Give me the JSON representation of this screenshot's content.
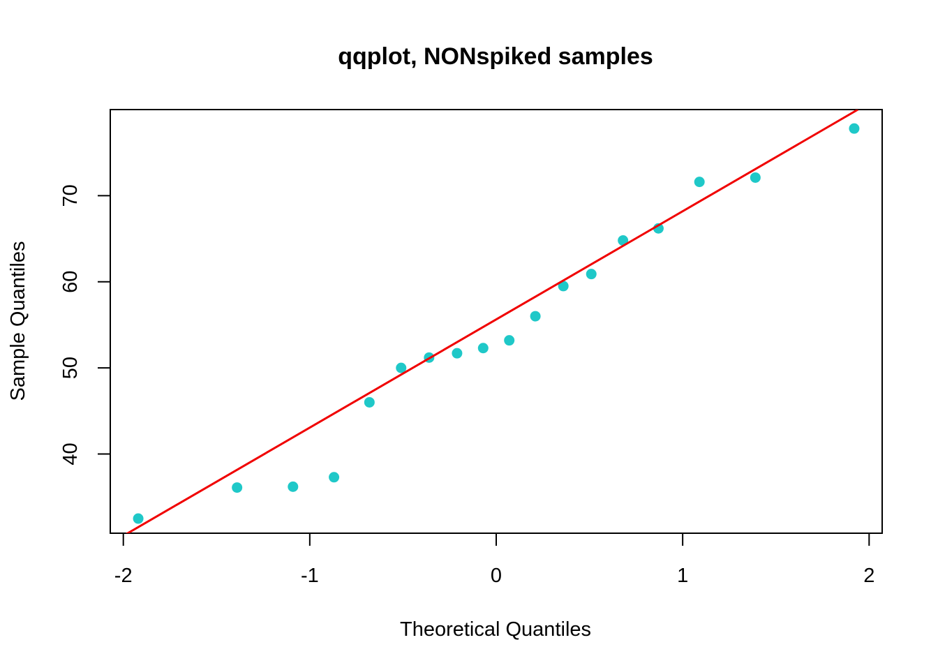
{
  "chart_data": {
    "type": "scatter",
    "title": "qqplot, NONspiked samples",
    "xlabel": "Theoretical Quantiles",
    "ylabel": "Sample Quantiles",
    "xlim": [
      -2.07,
      2.07
    ],
    "ylim": [
      30.8,
      80.0
    ],
    "xticks": [
      -2,
      -1,
      0,
      1,
      2
    ],
    "xtick_labels": [
      "-2",
      "-1",
      "0",
      "1",
      "2"
    ],
    "yticks": [
      40,
      50,
      60,
      70
    ],
    "ytick_labels": [
      "40",
      "50",
      "60",
      "70"
    ],
    "grid": false,
    "legend": "none",
    "point_color": "#1FC8C8",
    "line_color": "#F00000",
    "series": [
      {
        "x": [
          -1.92,
          -1.39,
          -1.09,
          -0.87,
          -0.68,
          -0.51,
          -0.36,
          -0.21,
          -0.07,
          0.07,
          0.21,
          0.36,
          0.51,
          0.68,
          0.87,
          1.09,
          1.39,
          1.92
        ],
        "y": [
          32.5,
          36.1,
          36.2,
          37.3,
          46.0,
          50.0,
          51.2,
          51.7,
          52.3,
          53.2,
          56.0,
          59.5,
          60.9,
          64.8,
          66.2,
          71.6,
          72.1,
          77.8
        ]
      }
    ],
    "reference_line": {
      "x": [
        -2.0,
        1.94
      ],
      "y": [
        30.5,
        80.0
      ]
    }
  }
}
